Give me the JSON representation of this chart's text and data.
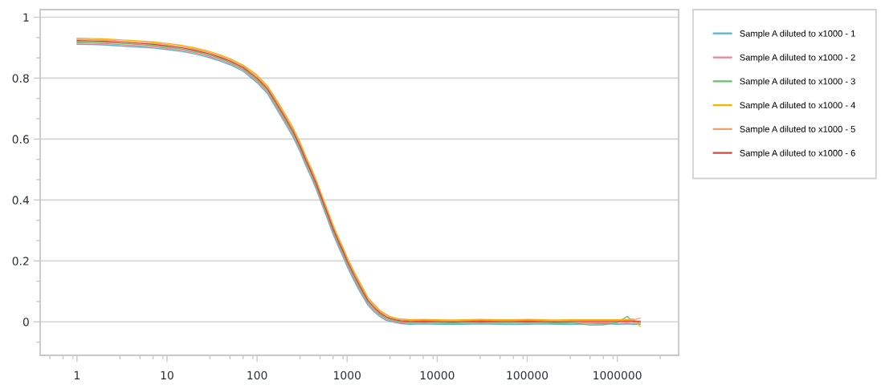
{
  "chart_data": {
    "type": "line",
    "log": "x",
    "grid": "y",
    "legend": "right",
    "line_style": "solid",
    "xlim": [
      0.39,
      4800000
    ],
    "ylim": [
      -0.11,
      1.025
    ],
    "xticks": [
      1,
      10,
      100,
      1000,
      10000,
      100000,
      1000000
    ],
    "yticks": [
      0,
      0.2,
      0.4,
      0.6,
      0.8,
      1
    ],
    "x": [
      1,
      1.5,
      2,
      3,
      5,
      7,
      10,
      15,
      20,
      30,
      40,
      50,
      70,
      100,
      130,
      170,
      200,
      250,
      300,
      350,
      400,
      450,
      500,
      600,
      700,
      800,
      900,
      1000,
      1200,
      1400,
      1700,
      2000,
      2300,
      2700,
      3000,
      3500,
      4000,
      5000,
      7000,
      10000,
      15000,
      20000,
      30000,
      50000,
      70000,
      100000,
      150000,
      200000,
      300000,
      500000,
      700000,
      1000000,
      1300000,
      1500000,
      1800000
    ],
    "series": [
      {
        "name": "Sample A diluted to x1000 - 1",
        "color": "#5ab4d0",
        "values": [
          0.911,
          0.91,
          0.909,
          0.906,
          0.902,
          0.899,
          0.894,
          0.887,
          0.88,
          0.867,
          0.855,
          0.844,
          0.823,
          0.785,
          0.75,
          0.692,
          0.657,
          0.608,
          0.559,
          0.511,
          0.474,
          0.438,
          0.402,
          0.34,
          0.287,
          0.247,
          0.214,
          0.182,
          0.134,
          0.097,
          0.055,
          0.032,
          0.018,
          0.005,
          0.002,
          -0.003,
          -0.006,
          -0.008,
          -0.007,
          -0.008,
          -0.009,
          -0.008,
          -0.007,
          -0.008,
          -0.009,
          -0.008,
          -0.007,
          -0.008,
          -0.009,
          -0.007,
          -0.006,
          -0.008,
          -0.007,
          -0.008,
          -0.008
        ]
      },
      {
        "name": "Sample A diluted to x1000 - 2",
        "color": "#ee8494",
        "values": [
          0.915,
          0.914,
          0.913,
          0.91,
          0.906,
          0.903,
          0.898,
          0.891,
          0.884,
          0.871,
          0.859,
          0.848,
          0.827,
          0.79,
          0.755,
          0.698,
          0.663,
          0.614,
          0.565,
          0.517,
          0.48,
          0.444,
          0.408,
          0.346,
          0.293,
          0.253,
          0.22,
          0.188,
          0.14,
          0.103,
          0.06,
          0.037,
          0.022,
          0.009,
          0.005,
          0.0,
          -0.003,
          -0.005,
          -0.004,
          -0.005,
          -0.006,
          -0.005,
          -0.004,
          -0.005,
          -0.005,
          -0.004,
          -0.005,
          -0.006,
          -0.005,
          -0.003,
          -0.003,
          -0.005,
          -0.004,
          -0.005,
          -0.004
        ]
      },
      {
        "name": "Sample A diluted to x1000 - 3",
        "color": "#6cbf6c",
        "values": [
          0.919,
          0.918,
          0.917,
          0.914,
          0.91,
          0.907,
          0.902,
          0.895,
          0.888,
          0.875,
          0.863,
          0.852,
          0.831,
          0.795,
          0.76,
          0.704,
          0.669,
          0.62,
          0.571,
          0.523,
          0.486,
          0.45,
          0.414,
          0.352,
          0.299,
          0.259,
          0.226,
          0.194,
          0.146,
          0.109,
          0.065,
          0.042,
          0.026,
          0.013,
          0.008,
          0.003,
          0.0,
          -0.002,
          -0.001,
          -0.002,
          -0.003,
          -0.002,
          -0.001,
          -0.002,
          -0.002,
          -0.001,
          -0.002,
          -0.003,
          -0.002,
          -0.011,
          -0.01,
          -0.002,
          0.018,
          -0.001,
          -0.001
        ]
      },
      {
        "name": "Sample A diluted to x1000 - 4",
        "color": "#f5b301",
        "values": [
          0.931,
          0.93,
          0.929,
          0.926,
          0.922,
          0.919,
          0.914,
          0.907,
          0.9,
          0.887,
          0.875,
          0.864,
          0.843,
          0.81,
          0.775,
          0.722,
          0.687,
          0.638,
          0.589,
          0.541,
          0.504,
          0.468,
          0.432,
          0.37,
          0.317,
          0.277,
          0.244,
          0.212,
          0.164,
          0.127,
          0.08,
          0.057,
          0.038,
          0.025,
          0.017,
          0.012,
          0.009,
          0.007,
          0.008,
          0.007,
          0.006,
          0.007,
          0.008,
          0.007,
          0.007,
          0.008,
          0.007,
          0.006,
          0.007,
          0.007,
          0.007,
          0.007,
          0.008,
          0.009,
          -0.015
        ]
      },
      {
        "name": "Sample A diluted to x1000 - 5",
        "color": "#f59e6b",
        "values": [
          0.927,
          0.926,
          0.925,
          0.922,
          0.918,
          0.915,
          0.91,
          0.903,
          0.896,
          0.883,
          0.871,
          0.86,
          0.839,
          0.805,
          0.77,
          0.716,
          0.681,
          0.632,
          0.583,
          0.535,
          0.498,
          0.462,
          0.426,
          0.364,
          0.311,
          0.271,
          0.238,
          0.206,
          0.158,
          0.121,
          0.075,
          0.052,
          0.034,
          0.021,
          0.014,
          0.009,
          0.006,
          0.004,
          0.005,
          0.004,
          0.003,
          0.004,
          0.005,
          0.004,
          0.004,
          0.005,
          0.004,
          0.003,
          0.004,
          0.004,
          0.004,
          0.004,
          0.005,
          0.006,
          0.012
        ]
      },
      {
        "name": "Sample A diluted to x1000 - 6",
        "color": "#d04a3e",
        "values": [
          0.923,
          0.922,
          0.921,
          0.918,
          0.914,
          0.911,
          0.906,
          0.899,
          0.892,
          0.879,
          0.867,
          0.856,
          0.835,
          0.8,
          0.765,
          0.71,
          0.675,
          0.626,
          0.577,
          0.529,
          0.492,
          0.456,
          0.42,
          0.358,
          0.305,
          0.265,
          0.232,
          0.2,
          0.152,
          0.115,
          0.07,
          0.047,
          0.03,
          0.017,
          0.011,
          0.006,
          0.003,
          0.001,
          0.002,
          0.001,
          0.0,
          0.001,
          0.002,
          0.001,
          0.001,
          0.002,
          0.001,
          0.0,
          0.001,
          0.001,
          0.001,
          0.001,
          0.002,
          0.002,
          0.002
        ]
      }
    ]
  }
}
